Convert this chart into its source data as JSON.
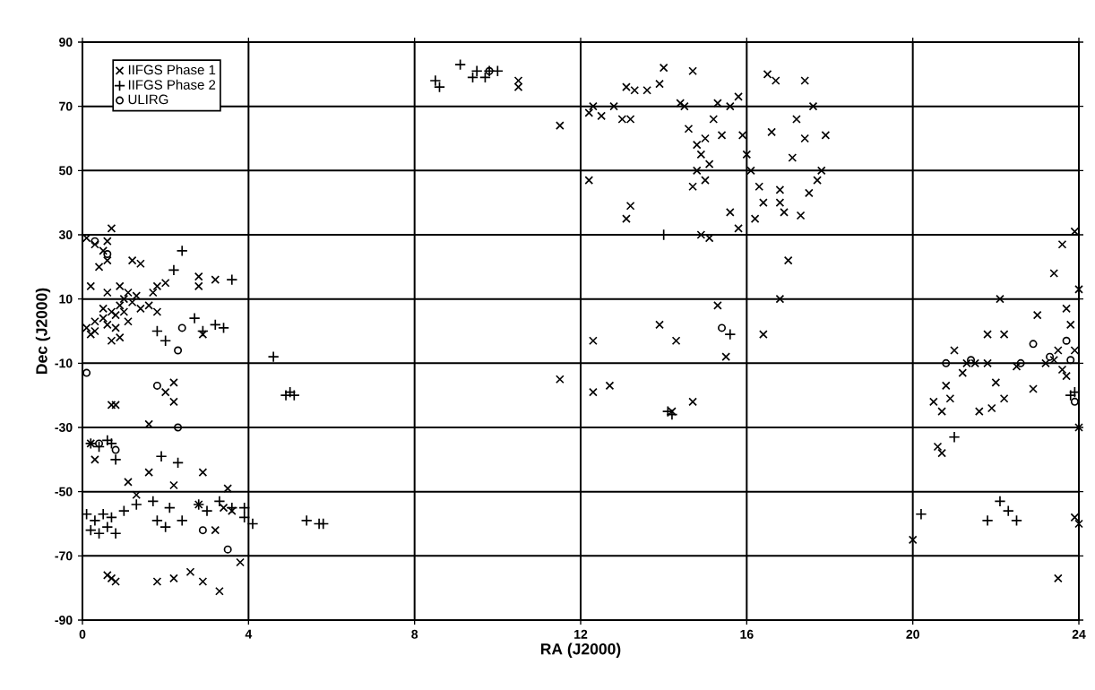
{
  "chart_data": {
    "type": "scatter",
    "xlabel": "RA (J2000)",
    "ylabel": "Dec (J2000)",
    "xlim": [
      0,
      24
    ],
    "ylim": [
      -90,
      90
    ],
    "xticks": [
      0,
      4,
      8,
      12,
      16,
      20,
      24
    ],
    "yticks": [
      -90,
      -70,
      -50,
      -30,
      -10,
      10,
      30,
      50,
      70,
      90
    ],
    "grid": true,
    "legend": "top left",
    "series": [
      {
        "name": "IIFGS Phase 1",
        "color": "#000000",
        "marker": "cross",
        "x": [
          0.1,
          0.2,
          0.3,
          0.5,
          0.6,
          0.7,
          0.6,
          0.4,
          0.6,
          0.1,
          0.2,
          0.3,
          0.5,
          0.6,
          0.7,
          0.8,
          0.9,
          1.0,
          1.1,
          1.2,
          1.3,
          1.0,
          0.8,
          0.7,
          0.9,
          1.1,
          1.4,
          1.6,
          1.7,
          1.8,
          1.8,
          2.0,
          1.2,
          1.4,
          0.9,
          0.5,
          0.3,
          2.8,
          2.8,
          3.2,
          2.9,
          0.7,
          0.8,
          2.2,
          2.0,
          2.2,
          1.6,
          0.2,
          0.3,
          1.1,
          1.3,
          1.6,
          2.2,
          2.9,
          3.5,
          3.6,
          3.4,
          2.8,
          3.2,
          3.8,
          0.6,
          0.7,
          0.8,
          1.8,
          2.2,
          2.6,
          2.9,
          3.3,
          10.5,
          10.5,
          11.5,
          12.2,
          12.3,
          12.5,
          12.8,
          13.0,
          13.1,
          13.3,
          13.6,
          13.9,
          14.0,
          14.4,
          14.7,
          14.6,
          14.8,
          14.9,
          15.0,
          15.1,
          15.0,
          14.8,
          14.7,
          14.5,
          15.2,
          15.4,
          15.6,
          15.8,
          15.9,
          16.0,
          16.1,
          16.3,
          16.4,
          16.2,
          15.8,
          15.6,
          16.5,
          16.7,
          16.6,
          16.8,
          16.9,
          17.1,
          17.2,
          17.4,
          17.4,
          17.5,
          17.7,
          17.6,
          17.9,
          17.8,
          17.3,
          15.1,
          16.8,
          15.3,
          13.2,
          12.2,
          13.2,
          13.1,
          14.9,
          17.0,
          16.8,
          15.3,
          13.9,
          14.3,
          15.5,
          16.4,
          12.3,
          11.5,
          12.3,
          12.7,
          14.7,
          14.2,
          20.5,
          20.7,
          20.8,
          21.0,
          21.3,
          21.5,
          21.8,
          21.8,
          22.0,
          21.6,
          21.9,
          22.2,
          22.5,
          22.9,
          23.0,
          23.2,
          23.4,
          23.5,
          23.6,
          23.7,
          23.8,
          23.9,
          24.0,
          23.6,
          23.9,
          23.4,
          20.6,
          20.7,
          20.0,
          22.1,
          23.5,
          23.9,
          24.0,
          24.0,
          22.2,
          23.7,
          21.2,
          20.9
        ],
        "values": [
          29,
          14,
          27,
          25,
          22,
          32,
          28,
          20,
          12,
          1,
          -1,
          3,
          4,
          2,
          6,
          5,
          8,
          10,
          12,
          9,
          11,
          6,
          1,
          -3,
          -2,
          3,
          7,
          8,
          12,
          6,
          14,
          15,
          22,
          21,
          14,
          7,
          0,
          17,
          14,
          16,
          -1,
          -23,
          -23,
          -16,
          -19,
          -22,
          -29,
          -35,
          -40,
          -47,
          -51,
          -44,
          -48,
          -44,
          -49,
          -56,
          -55,
          -54,
          -62,
          -72,
          -76,
          -77,
          -78,
          -78,
          -77,
          -75,
          -78,
          -81,
          78,
          76,
          64,
          68,
          70,
          67,
          70,
          66,
          76,
          75,
          75,
          77,
          82,
          71,
          81,
          63,
          58,
          55,
          60,
          52,
          47,
          50,
          45,
          70,
          66,
          61,
          70,
          73,
          61,
          55,
          50,
          45,
          40,
          35,
          32,
          37,
          80,
          78,
          62,
          44,
          37,
          54,
          66,
          78,
          60,
          43,
          47,
          70,
          61,
          50,
          36,
          29,
          40,
          71,
          66,
          47,
          39,
          35,
          30,
          22,
          10,
          8,
          2,
          -3,
          -8,
          -1,
          -3,
          -15,
          -19,
          -17,
          -22,
          -25,
          -22,
          -25,
          -17,
          -6,
          -10,
          -10,
          -1,
          -10,
          -16,
          -25,
          -24,
          -21,
          -11,
          -18,
          5,
          -10,
          -9,
          -6,
          -12,
          7,
          2,
          -6,
          13,
          27,
          31,
          18,
          -36,
          -38,
          -65,
          10,
          -77,
          -58,
          -60,
          -30,
          -1,
          -14,
          -13,
          -21
        ]
      },
      {
        "name": "IIFGS Phase 2",
        "color": "#000000",
        "marker": "plus",
        "x": [
          8.5,
          8.6,
          9.1,
          9.4,
          9.5,
          9.7,
          9.8,
          10.0,
          0.2,
          0.4,
          0.6,
          0.7,
          0.8,
          0.1,
          0.3,
          0.5,
          0.7,
          0.2,
          0.4,
          0.6,
          0.8,
          1.0,
          1.3,
          1.7,
          1.9,
          2.3,
          1.8,
          2.1,
          2.0,
          2.4,
          2.8,
          3.0,
          3.3,
          3.6,
          3.9,
          4.1,
          5.4,
          5.7,
          5.8,
          3.9,
          1.8,
          2.0,
          2.7,
          2.9,
          3.4,
          3.2,
          2.2,
          2.4,
          3.6,
          4.6,
          5.0,
          5.1,
          4.9,
          14.0,
          14.1,
          14.2,
          15.6,
          20.2,
          21.0,
          22.1,
          21.8,
          22.3,
          22.5,
          23.8,
          23.9
        ],
        "values": [
          78,
          76,
          83,
          79,
          81,
          79,
          81,
          81,
          -35,
          -36,
          -34,
          -35,
          -40,
          -57,
          -59,
          -57,
          -58,
          -62,
          -63,
          -61,
          -63,
          -56,
          -54,
          -53,
          -39,
          -41,
          -59,
          -55,
          -61,
          -59,
          -54,
          -56,
          -53,
          -55,
          -58,
          -60,
          -59,
          -60,
          -60,
          -55,
          0,
          -3,
          4,
          0,
          1,
          2,
          19,
          25,
          16,
          -8,
          -19,
          -20,
          -20,
          30,
          -25,
          -26,
          -1,
          -57,
          -33,
          -53,
          -59,
          -56,
          -59,
          -20,
          -19
        ]
      },
      {
        "name": "ULIRG",
        "color": "#000000",
        "marker": "circle",
        "x": [
          0.1,
          0.6,
          2.4,
          2.3,
          1.8,
          2.3,
          0.4,
          0.8,
          2.9,
          3.5,
          15.4,
          20.8,
          21.4,
          22.6,
          22.9,
          23.3,
          23.7,
          23.8,
          23.9,
          9.8,
          0.3
        ],
        "values": [
          -13,
          24,
          1,
          -6,
          -17,
          -30,
          -35,
          -37,
          -62,
          -68,
          1,
          -10,
          -9,
          -10,
          -4,
          -8,
          -3,
          -9,
          -22,
          81,
          28
        ]
      }
    ]
  }
}
